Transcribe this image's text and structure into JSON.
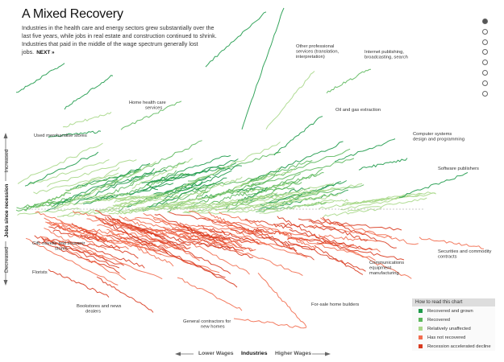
{
  "header": {
    "title": "A Mixed Recovery",
    "description": "Industries in the health care and energy sectors grew substantially over the last five years, while jobs in real estate and construction continued to shrink. Industries that paid in the middle of the wage spectrum generally lost jobs.",
    "next_label": "NEXT »"
  },
  "nav": {
    "dot_count": 8,
    "active_index": 0
  },
  "y_axis": {
    "increased": "Increased",
    "title": "Jobs since recession",
    "decreased": "Decreased"
  },
  "x_axis": {
    "lower": "Lower Wages",
    "title": "Industries",
    "higher": "Higher Wages"
  },
  "legend": {
    "title": "How to read this chart",
    "items": [
      {
        "label": "Recovered and grown",
        "color": "#1e9a4a"
      },
      {
        "label": "Recovered",
        "color": "#5cb85c"
      },
      {
        "label": "Relatively unaffected",
        "color": "#a9d88a"
      },
      {
        "label": "Has not recovered",
        "color": "#f26d4f"
      },
      {
        "label": "Recession accelerated decline",
        "color": "#d93a1f"
      }
    ]
  },
  "annotations": {
    "other_prof": [
      "Other professional",
      "services (translation,",
      "interpretation)"
    ],
    "internet": [
      "Internet publishing,",
      "broadcasting, search"
    ],
    "home_health": [
      "Home health care",
      "services"
    ],
    "oil_gas": [
      "Oil and gas extraction"
    ],
    "used_merch": [
      "Used merchandise stores"
    ],
    "computer_sys": [
      "Computer systems",
      "design and programming"
    ],
    "software": [
      "Software publishers"
    ],
    "gift": [
      "Gift, novelty and souvenir",
      "stores"
    ],
    "securities": [
      "Securities and commodity",
      "contracts"
    ],
    "communications": [
      "Communications",
      "equipment",
      "manufacturing"
    ],
    "florists": [
      "Florists"
    ],
    "bookstores": [
      "Bookstores and news",
      "dealers"
    ],
    "for_sale": [
      "For-sale home builders"
    ],
    "general_contractors": [
      "General contractors for",
      "new homes"
    ]
  },
  "chart_data": {
    "type": "line",
    "title": "A Mixed Recovery",
    "xlabel": "Industries",
    "ylabel": "Jobs since recession",
    "x_axis_direction": "Lower Wages → Higher Wages",
    "baseline": "Jobs level at recession (dashed line)",
    "note": "Each line is one industry's employment change over five years since the recession, placed left-to-right by wage; lines above the dashed baseline increased, below decreased.",
    "highlighted_series": [
      {
        "name": "Other professional services (translation, interpretation)",
        "category": "Recovered and grown"
      },
      {
        "name": "Internet publishing, broadcasting, search",
        "category": "Recovered and grown"
      },
      {
        "name": "Home health care services",
        "category": "Recovered and grown"
      },
      {
        "name": "Oil and gas extraction",
        "category": "Recovered and grown"
      },
      {
        "name": "Used merchandise stores",
        "category": "Recovered and grown"
      },
      {
        "name": "Computer systems design and programming",
        "category": "Recovered and grown"
      },
      {
        "name": "Software publishers",
        "category": "Recovered and grown"
      },
      {
        "name": "Gift, novelty and souvenir stores",
        "category": "Has not recovered"
      },
      {
        "name": "Securities and commodity contracts",
        "category": "Has not recovered"
      },
      {
        "name": "Communications equipment manufacturing",
        "category": "Recession accelerated decline"
      },
      {
        "name": "Florists",
        "category": "Recession accelerated decline"
      },
      {
        "name": "Bookstores and news dealers",
        "category": "Recession accelerated decline"
      },
      {
        "name": "For-sale home builders",
        "category": "Has not recovered"
      },
      {
        "name": "General contractors for new homes",
        "category": "Has not recovered"
      }
    ],
    "legend_position": "bottom-right",
    "grid": false
  }
}
